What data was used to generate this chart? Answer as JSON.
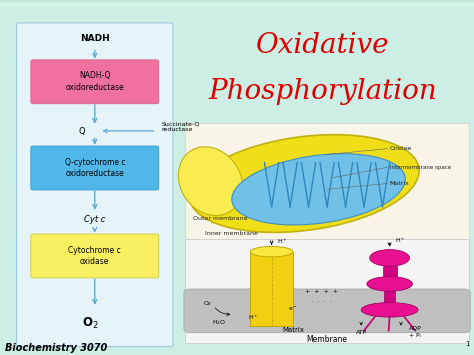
{
  "bg_color": "#cceee4",
  "title_text": "Biochemistry 3070",
  "main_title_line1": "Oxidative",
  "main_title_line2": "Phosphorylation",
  "slide_number": "1",
  "flowchart": {
    "bg_color": "#e4f4f8",
    "border_color": "#a0c8dc",
    "nadh_label": "NADH",
    "box1_text": "NADH-Q\noxidoreductase",
    "box1_color": "#f070a0",
    "q_label": "Q",
    "succinate_label": "Succinate-Q\nreductase",
    "box2_text": "Q-cytochrome c\noxidoreductase",
    "box2_color": "#50b8e8",
    "cytc_label": "Cyt c",
    "box3_text": "Cytochrome c\noxidase",
    "box3_color": "#f8f060",
    "o2_label": "O",
    "arrow_color": "#60aad0"
  }
}
